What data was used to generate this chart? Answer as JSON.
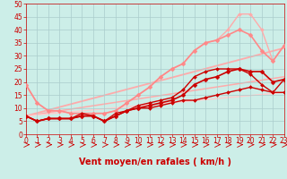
{
  "background_color": "#cceee8",
  "grid_color": "#aacccc",
  "xlabel": "Vent moyen/en rafales ( km/h )",
  "xlim": [
    0,
    23
  ],
  "ylim": [
    0,
    50
  ],
  "yticks": [
    0,
    5,
    10,
    15,
    20,
    25,
    30,
    35,
    40,
    45,
    50
  ],
  "xticks": [
    0,
    1,
    2,
    3,
    4,
    5,
    6,
    7,
    8,
    9,
    10,
    11,
    12,
    13,
    14,
    15,
    16,
    17,
    18,
    19,
    20,
    21,
    22,
    23
  ],
  "series": [
    {
      "x": [
        0,
        1,
        2,
        3,
        4,
        5,
        6,
        7,
        8,
        9,
        10,
        11,
        12,
        13,
        14,
        15,
        16,
        17,
        18,
        19,
        20,
        21,
        22,
        23
      ],
      "y": [
        7,
        5,
        6,
        6,
        6,
        7,
        7,
        5,
        7,
        9,
        10,
        10,
        11,
        12,
        13,
        13,
        14,
        15,
        16,
        17,
        18,
        17,
        16,
        16
      ],
      "color": "#cc0000",
      "linewidth": 1.0,
      "marker": "D",
      "markersize": 2.0,
      "zorder": 5
    },
    {
      "x": [
        0,
        1,
        2,
        3,
        4,
        5,
        6,
        7,
        8,
        9,
        10,
        11,
        12,
        13,
        14,
        15,
        16,
        17,
        18,
        19,
        20,
        21,
        22,
        23
      ],
      "y": [
        7,
        5,
        6,
        6,
        6,
        7,
        7,
        5,
        7,
        9,
        10,
        11,
        12,
        13,
        15,
        19,
        21,
        22,
        24,
        25,
        24,
        24,
        20,
        21
      ],
      "color": "#cc0000",
      "linewidth": 1.2,
      "marker": "D",
      "markersize": 2.5,
      "zorder": 5
    },
    {
      "x": [
        0,
        1,
        2,
        3,
        4,
        5,
        6,
        7,
        8,
        9,
        10,
        11,
        12,
        13,
        14,
        15,
        16,
        17,
        18,
        19,
        20,
        21,
        22,
        23
      ],
      "y": [
        7,
        5,
        6,
        6,
        6,
        8,
        7,
        5,
        8,
        9,
        11,
        12,
        13,
        14,
        17,
        22,
        24,
        25,
        25,
        25,
        23,
        19,
        16,
        21
      ],
      "color": "#cc0000",
      "linewidth": 1.0,
      "marker": "D",
      "markersize": 2.0,
      "zorder": 4
    },
    {
      "x": [
        0,
        1,
        2,
        3,
        4,
        5,
        6,
        7,
        8,
        9,
        10,
        11,
        12,
        13,
        14,
        15,
        16,
        17,
        18,
        19,
        20,
        21,
        22,
        23
      ],
      "y": [
        19,
        12,
        9,
        9,
        8,
        8,
        8,
        8,
        9,
        12,
        15,
        18,
        22,
        25,
        27,
        32,
        35,
        36,
        38,
        40,
        38,
        32,
        28,
        34
      ],
      "color": "#ff8888",
      "linewidth": 1.2,
      "marker": "D",
      "markersize": 2.5,
      "zorder": 3
    },
    {
      "x": [
        0,
        1,
        2,
        3,
        4,
        5,
        6,
        7,
        8,
        9,
        10,
        11,
        12,
        13,
        14,
        15,
        16,
        17,
        18,
        19,
        20,
        21,
        22,
        23
      ],
      "y": [
        19,
        12,
        9,
        9,
        8,
        8,
        8,
        8,
        9,
        12,
        15,
        18,
        22,
        25,
        27,
        32,
        35,
        36,
        40,
        46,
        46,
        40,
        28,
        34
      ],
      "color": "#ffaaaa",
      "linewidth": 1.0,
      "marker": "D",
      "markersize": 2.0,
      "zorder": 2
    },
    {
      "x": [
        0,
        23
      ],
      "y": [
        7,
        33
      ],
      "color": "#ffaaaa",
      "linewidth": 1.3,
      "linestyle": "-",
      "marker": null,
      "zorder": 1
    },
    {
      "x": [
        0,
        23
      ],
      "y": [
        7,
        22
      ],
      "color": "#ffaaaa",
      "linewidth": 1.1,
      "linestyle": "-",
      "marker": null,
      "zorder": 1
    },
    {
      "x": [
        0,
        23
      ],
      "y": [
        7,
        16
      ],
      "color": "#ffcccc",
      "linewidth": 1.0,
      "linestyle": "-",
      "marker": null,
      "zorder": 1
    }
  ],
  "arrow_color": "#cc0000",
  "xlabel_color": "#cc0000",
  "xlabel_fontsize": 7,
  "tick_color": "#cc0000",
  "tick_fontsize": 5.5
}
